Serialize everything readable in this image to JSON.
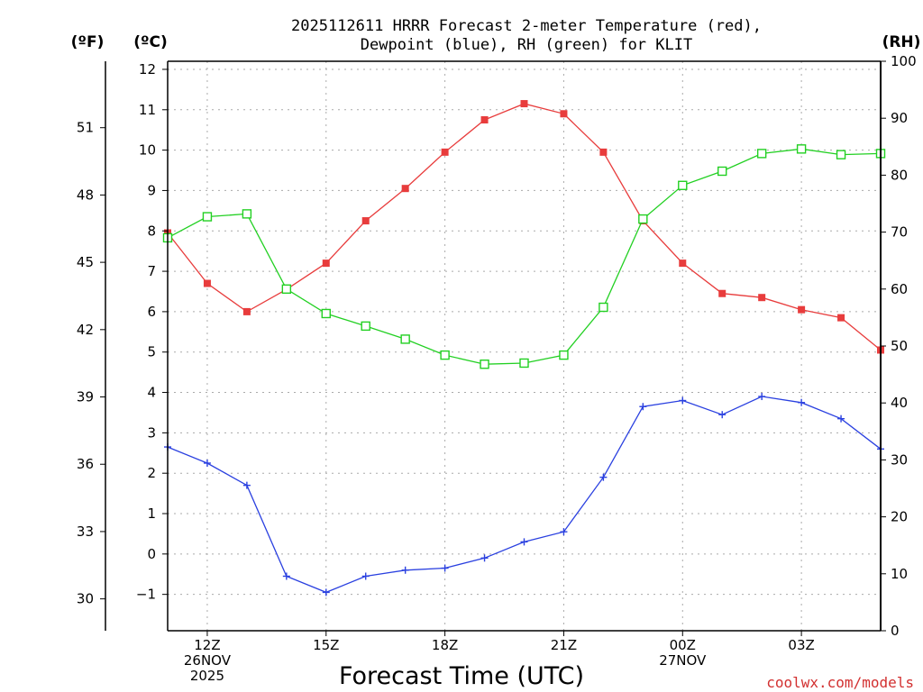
{
  "chart_data": {
    "type": "line",
    "title_lines": [
      "2025112611 HRRR Forecast 2-meter Temperature (red),",
      "Dewpoint (blue), RH (green) for KLIT"
    ],
    "xlabel": "Forecast Time (UTC)",
    "credit": "coolwx.com/models",
    "units": {
      "left_f": "(ºF)",
      "left_c": "(ºC)",
      "right_rh": "(RH)"
    },
    "hours": [
      0,
      1,
      2,
      3,
      4,
      5,
      6,
      7,
      8,
      9,
      10,
      11,
      12,
      13,
      14,
      15,
      16,
      17,
      18
    ],
    "x_ticks": [
      {
        "hour": 1,
        "lines": [
          "12Z",
          "26NOV",
          "2025"
        ]
      },
      {
        "hour": 4,
        "lines": [
          "15Z"
        ]
      },
      {
        "hour": 7,
        "lines": [
          "18Z"
        ]
      },
      {
        "hour": 10,
        "lines": [
          "21Z"
        ]
      },
      {
        "hour": 13,
        "lines": [
          "00Z",
          "27NOV"
        ]
      },
      {
        "hour": 16,
        "lines": [
          "03Z"
        ]
      }
    ],
    "ylim_c": [
      -1.9,
      12.2
    ],
    "yticks_c": [
      -1,
      0,
      1,
      2,
      3,
      4,
      5,
      6,
      7,
      8,
      9,
      10,
      11,
      12
    ],
    "yticks_f": [
      30,
      33,
      36,
      39,
      42,
      45,
      48,
      51
    ],
    "ylim_rh": [
      0,
      100
    ],
    "yticks_rh": [
      0,
      10,
      20,
      30,
      40,
      50,
      60,
      70,
      80,
      90,
      100
    ],
    "series": [
      {
        "name": "2-meter Temperature",
        "axis": "c",
        "color": "#e83c3c",
        "marker": "filled-square",
        "values": [
          7.95,
          6.7,
          6.0,
          6.55,
          7.2,
          8.25,
          9.05,
          9.95,
          10.75,
          11.15,
          10.9,
          9.95,
          8.25,
          7.2,
          6.45,
          6.35,
          6.05,
          5.85,
          5.05
        ]
      },
      {
        "name": "Dewpoint",
        "axis": "c",
        "color": "#2a40e0",
        "marker": "plus",
        "values": [
          2.65,
          2.25,
          1.7,
          -0.55,
          -0.95,
          -0.55,
          -0.4,
          -0.35,
          -0.1,
          0.3,
          0.55,
          1.9,
          3.65,
          3.8,
          3.45,
          3.9,
          3.75,
          3.35,
          2.6
        ]
      },
      {
        "name": "RH",
        "axis": "rh",
        "color": "#22d022",
        "marker": "open-square",
        "values": [
          69,
          72.7,
          73.2,
          60,
          55.7,
          53.5,
          51.2,
          48.4,
          46.8,
          47,
          48.4,
          56.8,
          72.3,
          78.2,
          80.7,
          83.8,
          84.6,
          83.6,
          83.8
        ]
      }
    ]
  }
}
